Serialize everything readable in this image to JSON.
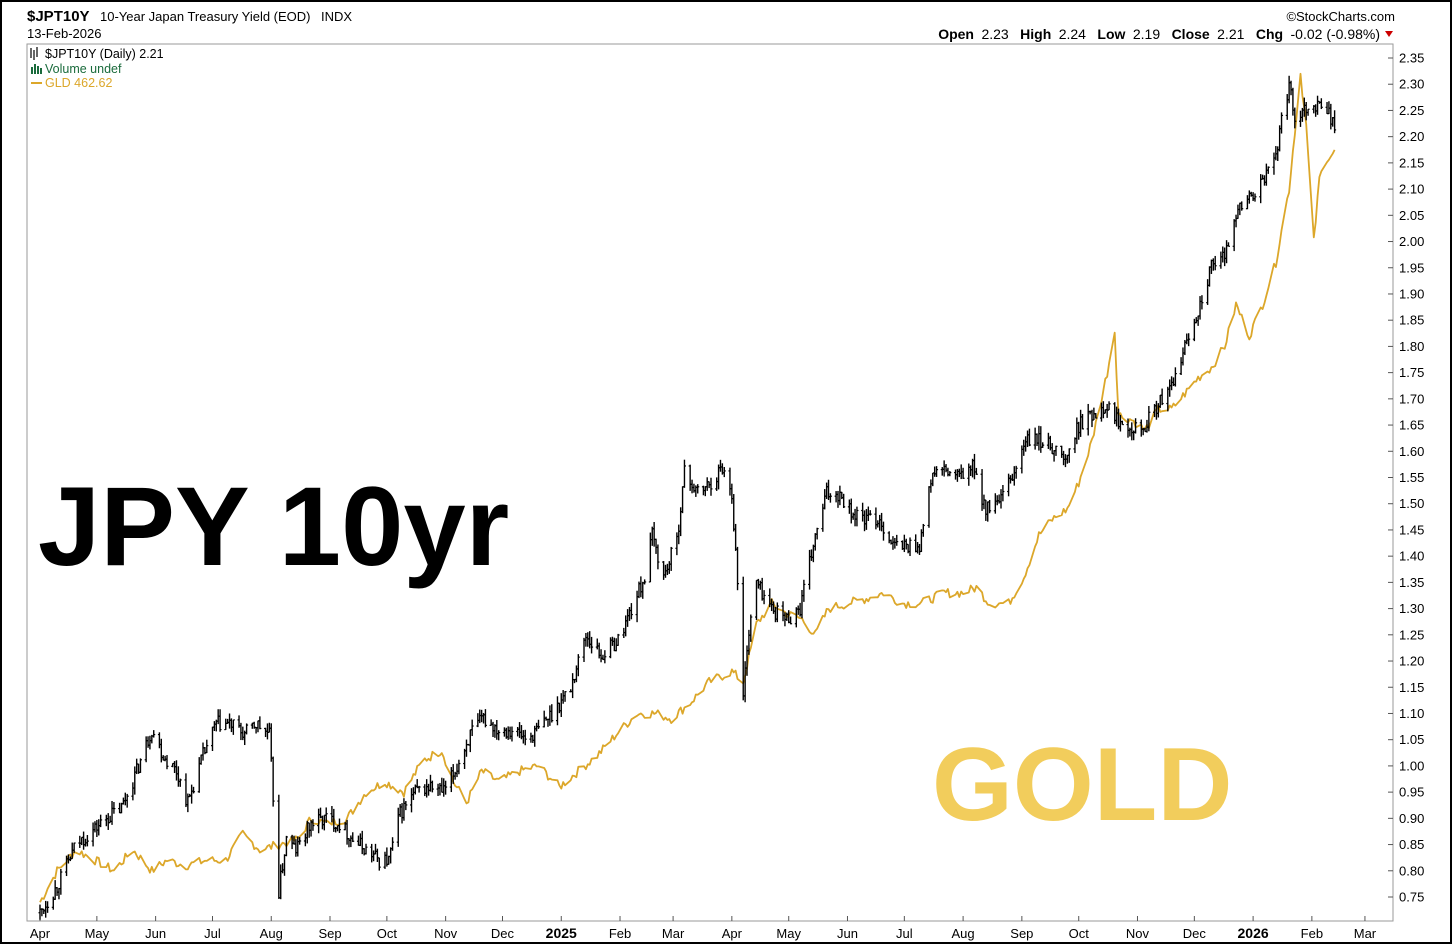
{
  "header": {
    "symbol": "$JPT10Y",
    "description": "10-Year Japan Treasury Yield (EOD)",
    "exchange": "INDX",
    "date": "13-Feb-2026",
    "watermark": "©StockCharts.com",
    "ohlc": {
      "open_label": "Open",
      "open": "2.23",
      "high_label": "High",
      "high": "2.24",
      "low_label": "Low",
      "low": "2.19",
      "close_label": "Close",
      "close": "2.21",
      "chg_label": "Chg",
      "chg": "-0.02 (-0.98%)"
    },
    "chg_arrow_color": "#cc0000"
  },
  "legend": {
    "main": "$JPT10Y (Daily) 2.21",
    "volume": "Volume undef",
    "overlay": "GLD 462.62"
  },
  "annotations": {
    "left_text": "JPY 10yr",
    "right_text": "GOLD"
  },
  "chart_data": {
    "type": "line",
    "y_axis": {
      "position": "right",
      "min": 0.72,
      "max": 2.37,
      "ticks": [
        "0.75",
        "0.80",
        "0.85",
        "0.90",
        "0.95",
        "1.00",
        "1.05",
        "1.10",
        "1.15",
        "1.20",
        "1.25",
        "1.30",
        "1.35",
        "1.40",
        "1.45",
        "1.50",
        "1.55",
        "1.60",
        "1.65",
        "1.70",
        "1.75",
        "1.80",
        "1.85",
        "1.90",
        "1.95",
        "2.00",
        "2.05",
        "2.10",
        "2.15",
        "2.20",
        "2.25",
        "2.30",
        "2.35"
      ]
    },
    "x_axis": {
      "start": "2024-04-01",
      "end": "2026-03-10",
      "ticks": [
        {
          "label": "Apr",
          "date": "2024-04-01",
          "bold": false
        },
        {
          "label": "May",
          "date": "2024-05-01",
          "bold": false
        },
        {
          "label": "Jun",
          "date": "2024-06-01",
          "bold": false
        },
        {
          "label": "Jul",
          "date": "2024-07-01",
          "bold": false
        },
        {
          "label": "Aug",
          "date": "2024-08-01",
          "bold": false
        },
        {
          "label": "Sep",
          "date": "2024-09-01",
          "bold": false
        },
        {
          "label": "Oct",
          "date": "2024-10-01",
          "bold": false
        },
        {
          "label": "Nov",
          "date": "2024-11-01",
          "bold": false
        },
        {
          "label": "Dec",
          "date": "2024-12-01",
          "bold": false
        },
        {
          "label": "2025",
          "date": "2025-01-01",
          "bold": true
        },
        {
          "label": "Feb",
          "date": "2025-02-01",
          "bold": false
        },
        {
          "label": "Mar",
          "date": "2025-03-01",
          "bold": false
        },
        {
          "label": "Apr",
          "date": "2025-04-01",
          "bold": false
        },
        {
          "label": "May",
          "date": "2025-05-01",
          "bold": false
        },
        {
          "label": "Jun",
          "date": "2025-06-01",
          "bold": false
        },
        {
          "label": "Jul",
          "date": "2025-07-01",
          "bold": false
        },
        {
          "label": "Aug",
          "date": "2025-08-01",
          "bold": false
        },
        {
          "label": "Sep",
          "date": "2025-09-01",
          "bold": false
        },
        {
          "label": "Oct",
          "date": "2025-10-01",
          "bold": false
        },
        {
          "label": "Nov",
          "date": "2025-11-01",
          "bold": false
        },
        {
          "label": "Dec",
          "date": "2025-12-01",
          "bold": false
        },
        {
          "label": "2026",
          "date": "2026-01-01",
          "bold": true
        },
        {
          "label": "Feb",
          "date": "2026-02-01",
          "bold": false
        },
        {
          "label": "Mar",
          "date": "2026-03-01",
          "bold": false
        }
      ]
    },
    "series": [
      {
        "name": "$JPT10Y (Daily)",
        "style": "ohlc-bars",
        "color": "#000000",
        "points": [
          [
            "2024-04-01",
            0.72
          ],
          [
            "2024-04-10",
            0.77
          ],
          [
            "2024-04-20",
            0.85
          ],
          [
            "2024-04-30",
            0.88
          ],
          [
            "2024-05-06",
            0.9
          ],
          [
            "2024-05-14",
            0.92
          ],
          [
            "2024-05-22",
            0.99
          ],
          [
            "2024-05-30",
            1.07
          ],
          [
            "2024-06-05",
            1.02
          ],
          [
            "2024-06-12",
            0.99
          ],
          [
            "2024-06-18",
            0.93
          ],
          [
            "2024-06-26",
            1.02
          ],
          [
            "2024-07-03",
            1.08
          ],
          [
            "2024-07-10",
            1.08
          ],
          [
            "2024-07-18",
            1.06
          ],
          [
            "2024-07-24",
            1.08
          ],
          [
            "2024-07-31",
            1.06
          ],
          [
            "2024-08-05",
            0.76
          ],
          [
            "2024-08-09",
            0.86
          ],
          [
            "2024-08-14",
            0.84
          ],
          [
            "2024-08-22",
            0.89
          ],
          [
            "2024-08-30",
            0.9
          ],
          [
            "2024-09-06",
            0.89
          ],
          [
            "2024-09-13",
            0.86
          ],
          [
            "2024-09-20",
            0.84
          ],
          [
            "2024-09-27",
            0.82
          ],
          [
            "2024-10-02",
            0.82
          ],
          [
            "2024-10-08",
            0.91
          ],
          [
            "2024-10-16",
            0.95
          ],
          [
            "2024-10-24",
            0.96
          ],
          [
            "2024-10-31",
            0.95
          ],
          [
            "2024-11-06",
            0.99
          ],
          [
            "2024-11-14",
            1.06
          ],
          [
            "2024-11-21",
            1.09
          ],
          [
            "2024-11-29",
            1.07
          ],
          [
            "2024-12-06",
            1.07
          ],
          [
            "2024-12-14",
            1.05
          ],
          [
            "2024-12-20",
            1.07
          ],
          [
            "2024-12-27",
            1.1
          ],
          [
            "2025-01-06",
            1.15
          ],
          [
            "2025-01-14",
            1.25
          ],
          [
            "2025-01-22",
            1.21
          ],
          [
            "2025-01-31",
            1.24
          ],
          [
            "2025-02-07",
            1.3
          ],
          [
            "2025-02-14",
            1.36
          ],
          [
            "2025-02-18",
            1.44
          ],
          [
            "2025-02-24",
            1.36
          ],
          [
            "2025-03-03",
            1.43
          ],
          [
            "2025-03-07",
            1.56
          ],
          [
            "2025-03-14",
            1.52
          ],
          [
            "2025-03-21",
            1.54
          ],
          [
            "2025-03-27",
            1.57
          ],
          [
            "2025-04-01",
            1.52
          ],
          [
            "2025-04-04",
            1.35
          ],
          [
            "2025-04-07",
            1.13
          ],
          [
            "2025-04-09",
            1.23
          ],
          [
            "2025-04-14",
            1.35
          ],
          [
            "2025-04-22",
            1.3
          ],
          [
            "2025-04-30",
            1.28
          ],
          [
            "2025-05-07",
            1.3
          ],
          [
            "2025-05-14",
            1.42
          ],
          [
            "2025-05-21",
            1.52
          ],
          [
            "2025-05-28",
            1.52
          ],
          [
            "2025-06-04",
            1.48
          ],
          [
            "2025-06-11",
            1.47
          ],
          [
            "2025-06-18",
            1.47
          ],
          [
            "2025-06-25",
            1.42
          ],
          [
            "2025-07-02",
            1.42
          ],
          [
            "2025-07-09",
            1.42
          ],
          [
            "2025-07-16",
            1.56
          ],
          [
            "2025-07-23",
            1.56
          ],
          [
            "2025-07-30",
            1.55
          ],
          [
            "2025-08-06",
            1.57
          ],
          [
            "2025-08-13",
            1.49
          ],
          [
            "2025-08-20",
            1.5
          ],
          [
            "2025-08-27",
            1.55
          ],
          [
            "2025-09-03",
            1.62
          ],
          [
            "2025-09-10",
            1.62
          ],
          [
            "2025-09-17",
            1.61
          ],
          [
            "2025-09-24",
            1.58
          ],
          [
            "2025-10-01",
            1.65
          ],
          [
            "2025-10-08",
            1.67
          ],
          [
            "2025-10-15",
            1.69
          ],
          [
            "2025-10-22",
            1.66
          ],
          [
            "2025-10-29",
            1.65
          ],
          [
            "2025-11-05",
            1.65
          ],
          [
            "2025-11-12",
            1.69
          ],
          [
            "2025-11-19",
            1.72
          ],
          [
            "2025-11-26",
            1.8
          ],
          [
            "2025-12-03",
            1.87
          ],
          [
            "2025-12-10",
            1.95
          ],
          [
            "2025-12-17",
            1.97
          ],
          [
            "2025-12-22",
            2.05
          ],
          [
            "2025-12-29",
            2.08
          ],
          [
            "2026-01-06",
            2.11
          ],
          [
            "2026-01-13",
            2.17
          ],
          [
            "2026-01-20",
            2.3
          ],
          [
            "2026-01-23",
            2.24
          ],
          [
            "2026-01-30",
            2.26
          ],
          [
            "2026-02-06",
            2.26
          ],
          [
            "2026-02-10",
            2.25
          ],
          [
            "2026-02-13",
            2.21
          ]
        ]
      },
      {
        "name": "GLD",
        "style": "line",
        "color": "#dca72a",
        "points": [
          [
            "2024-04-01",
            0.74
          ],
          [
            "2024-04-10",
            0.8
          ],
          [
            "2024-04-20",
            0.84
          ],
          [
            "2024-04-30",
            0.82
          ],
          [
            "2024-05-10",
            0.8
          ],
          [
            "2024-05-20",
            0.84
          ],
          [
            "2024-05-30",
            0.8
          ],
          [
            "2024-06-07",
            0.82
          ],
          [
            "2024-06-17",
            0.81
          ],
          [
            "2024-06-28",
            0.82
          ],
          [
            "2024-07-08",
            0.82
          ],
          [
            "2024-07-17",
            0.87
          ],
          [
            "2024-07-26",
            0.84
          ],
          [
            "2024-08-05",
            0.85
          ],
          [
            "2024-08-15",
            0.86
          ],
          [
            "2024-08-22",
            0.9
          ],
          [
            "2024-08-30",
            0.89
          ],
          [
            "2024-09-10",
            0.9
          ],
          [
            "2024-09-20",
            0.95
          ],
          [
            "2024-09-30",
            0.97
          ],
          [
            "2024-10-10",
            0.95
          ],
          [
            "2024-10-20",
            1.01
          ],
          [
            "2024-10-30",
            1.03
          ],
          [
            "2024-11-05",
            0.97
          ],
          [
            "2024-11-12",
            0.93
          ],
          [
            "2024-11-20",
            0.99
          ],
          [
            "2024-11-29",
            0.97
          ],
          [
            "2024-12-10",
            0.99
          ],
          [
            "2024-12-20",
            1.0
          ],
          [
            "2024-12-31",
            0.96
          ],
          [
            "2025-01-10",
            0.99
          ],
          [
            "2025-01-20",
            1.02
          ],
          [
            "2025-01-30",
            1.06
          ],
          [
            "2025-02-10",
            1.1
          ],
          [
            "2025-02-20",
            1.1
          ],
          [
            "2025-02-28",
            1.09
          ],
          [
            "2025-03-10",
            1.12
          ],
          [
            "2025-03-20",
            1.16
          ],
          [
            "2025-04-01",
            1.18
          ],
          [
            "2025-04-07",
            1.16
          ],
          [
            "2025-04-14",
            1.27
          ],
          [
            "2025-04-22",
            1.31
          ],
          [
            "2025-04-30",
            1.29
          ],
          [
            "2025-05-08",
            1.28
          ],
          [
            "2025-05-15",
            1.25
          ],
          [
            "2025-05-22",
            1.3
          ],
          [
            "2025-06-01",
            1.31
          ],
          [
            "2025-06-12",
            1.32
          ],
          [
            "2025-06-20",
            1.33
          ],
          [
            "2025-06-30",
            1.31
          ],
          [
            "2025-07-10",
            1.31
          ],
          [
            "2025-07-22",
            1.33
          ],
          [
            "2025-08-01",
            1.33
          ],
          [
            "2025-08-08",
            1.34
          ],
          [
            "2025-08-15",
            1.31
          ],
          [
            "2025-08-25",
            1.31
          ],
          [
            "2025-09-02",
            1.36
          ],
          [
            "2025-09-10",
            1.44
          ],
          [
            "2025-09-17",
            1.47
          ],
          [
            "2025-09-25",
            1.49
          ],
          [
            "2025-10-01",
            1.54
          ],
          [
            "2025-10-08",
            1.62
          ],
          [
            "2025-10-16",
            1.75
          ],
          [
            "2025-10-20",
            1.83
          ],
          [
            "2025-10-22",
            1.67
          ],
          [
            "2025-10-29",
            1.66
          ],
          [
            "2025-11-05",
            1.64
          ],
          [
            "2025-11-12",
            1.68
          ],
          [
            "2025-11-19",
            1.68
          ],
          [
            "2025-11-26",
            1.71
          ],
          [
            "2025-12-03",
            1.74
          ],
          [
            "2025-12-10",
            1.76
          ],
          [
            "2025-12-17",
            1.8
          ],
          [
            "2025-12-23",
            1.88
          ],
          [
            "2025-12-30",
            1.82
          ],
          [
            "2026-01-06",
            1.88
          ],
          [
            "2026-01-13",
            1.96
          ],
          [
            "2026-01-20",
            2.1
          ],
          [
            "2026-01-26",
            2.32
          ],
          [
            "2026-01-29",
            2.22
          ],
          [
            "2026-02-02",
            2.0
          ],
          [
            "2026-02-05",
            2.12
          ],
          [
            "2026-02-09",
            2.16
          ],
          [
            "2026-02-13",
            2.17
          ]
        ]
      }
    ]
  }
}
